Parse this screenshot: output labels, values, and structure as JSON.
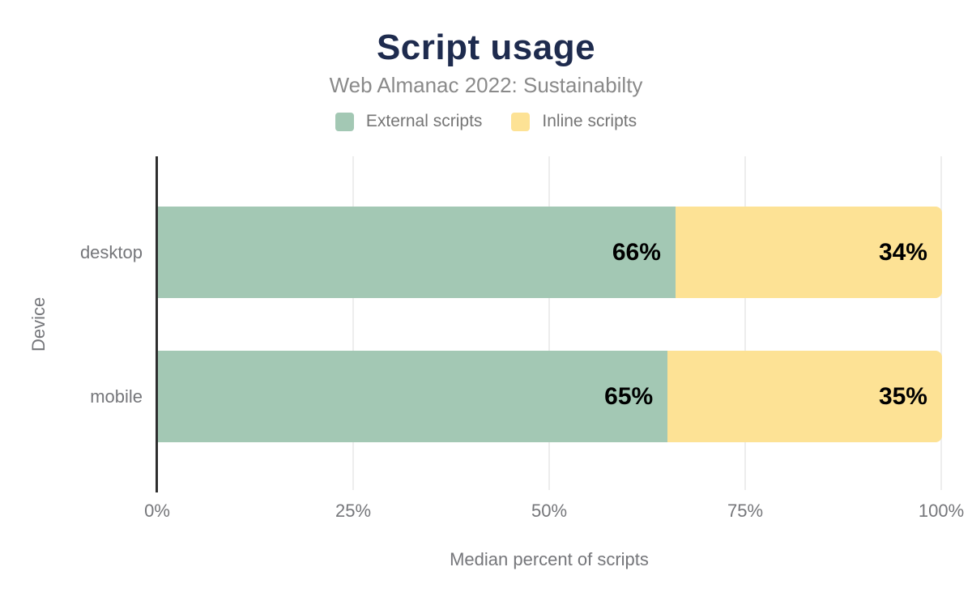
{
  "header": {
    "title": "Script usage",
    "subtitle": "Web Almanac 2022: Sustainabilty"
  },
  "colors": {
    "title": "#1e2b4e",
    "subtitle": "#8a8a8a",
    "muted_text": "#75767a",
    "external_scripts": "#a3c8b4",
    "inline_scripts": "#fde295",
    "axis_line": "#2e2e2e",
    "gridline": "#ededed",
    "value_label": "#000000",
    "background": "#ffffff"
  },
  "chart_data": {
    "type": "bar",
    "orientation": "horizontal",
    "stacked": true,
    "title": "Script usage",
    "subtitle": "Web Almanac 2022: Sustainabilty",
    "categories": [
      "desktop",
      "mobile"
    ],
    "series": [
      {
        "name": "External scripts",
        "color": "#a3c8b4",
        "values": [
          66,
          65
        ]
      },
      {
        "name": "Inline scripts",
        "color": "#fde295",
        "values": [
          34,
          35
        ]
      }
    ],
    "data_labels": [
      [
        "66%",
        "34%"
      ],
      [
        "65%",
        "35%"
      ]
    ],
    "xlabel": "Median percent of scripts",
    "ylabel": "Device",
    "xlim": [
      0,
      100
    ],
    "xticks": [
      0,
      25,
      50,
      75,
      100
    ],
    "xtick_labels": [
      "0%",
      "25%",
      "50%",
      "75%",
      "100%"
    ],
    "grid": "vertical",
    "legend_position": "top"
  }
}
